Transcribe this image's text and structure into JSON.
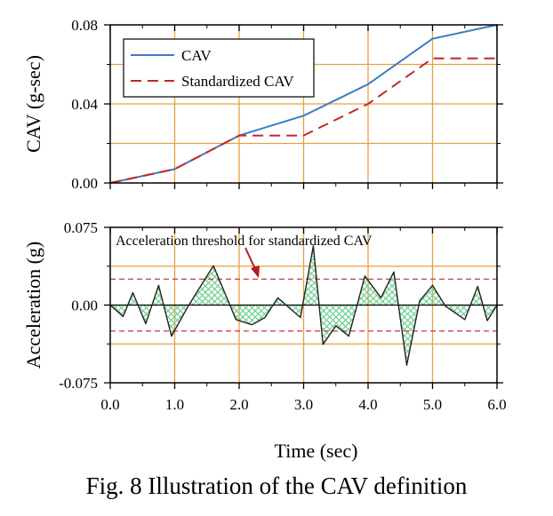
{
  "caption": "Fig. 8 Illustration of the CAV definition",
  "colors": {
    "cav": "#3a7cc4",
    "standardized": "#c0282c",
    "grid": "#e8a040",
    "hatch": "#6fcf8f",
    "threshold": "#d04a50",
    "arrow": "#b01c20"
  },
  "chart_data": [
    {
      "type": "line",
      "title": "",
      "xlabel": "",
      "ylabel": "CAV (g-sec)",
      "xlim": [
        0,
        6
      ],
      "ylim": [
        0,
        0.08
      ],
      "grid": true,
      "legend": "top-left",
      "x_ticks": [
        "0.0",
        "1.0",
        "2.0",
        "3.0",
        "4.0",
        "5.0",
        "6.0"
      ],
      "y_ticks": [
        {
          "value": 0.0,
          "label": "0.00"
        },
        {
          "value": 0.04,
          "label": "0.04"
        },
        {
          "value": 0.08,
          "label": "0.08"
        }
      ],
      "series": [
        {
          "name": "CAV",
          "style": "solid",
          "x": [
            0,
            1,
            2,
            3,
            4,
            5,
            6
          ],
          "y": [
            0,
            0.007,
            0.024,
            0.034,
            0.05,
            0.073,
            0.08
          ]
        },
        {
          "name": "Standardized CAV",
          "style": "dashed",
          "x": [
            0,
            1,
            2,
            3,
            4,
            5,
            6
          ],
          "y": [
            0,
            0.007,
            0.024,
            0.024,
            0.04,
            0.063,
            0.063
          ]
        }
      ]
    },
    {
      "type": "area",
      "title": "",
      "xlabel": "Time (sec)",
      "ylabel": "Acceleration (g)",
      "xlim": [
        0,
        6
      ],
      "ylim": [
        -0.075,
        0.075
      ],
      "grid": true,
      "x_ticks": [
        "0.0",
        "1.0",
        "2.0",
        "3.0",
        "4.0",
        "5.0",
        "6.0"
      ],
      "y_ticks": [
        {
          "value": 0.075,
          "label": "0.075"
        },
        {
          "value": 0.0,
          "label": "0.00"
        },
        {
          "value": -0.075,
          "label": "-0.075"
        }
      ],
      "threshold": 0.025,
      "annotation": "Acceleration threshold for standardized CAV",
      "series": [
        {
          "name": "",
          "x": [
            0,
            0.2,
            0.35,
            0.55,
            0.75,
            0.95,
            1.2,
            1.6,
            1.95,
            2.2,
            2.4,
            2.6,
            2.95,
            3.15,
            3.3,
            3.5,
            3.7,
            3.95,
            4.2,
            4.4,
            4.6,
            4.8,
            5.0,
            5.2,
            5.5,
            5.7,
            5.85,
            6.0
          ],
          "y": [
            0,
            -0.011,
            0.012,
            -0.018,
            0.019,
            -0.03,
            -0.002,
            0.038,
            -0.014,
            -0.019,
            -0.012,
            0.007,
            -0.012,
            0.057,
            -0.038,
            -0.02,
            -0.03,
            0.028,
            0.007,
            0.032,
            -0.058,
            0.004,
            0.019,
            -0.001,
            -0.014,
            0.018,
            -0.015,
            0
          ]
        }
      ]
    }
  ]
}
